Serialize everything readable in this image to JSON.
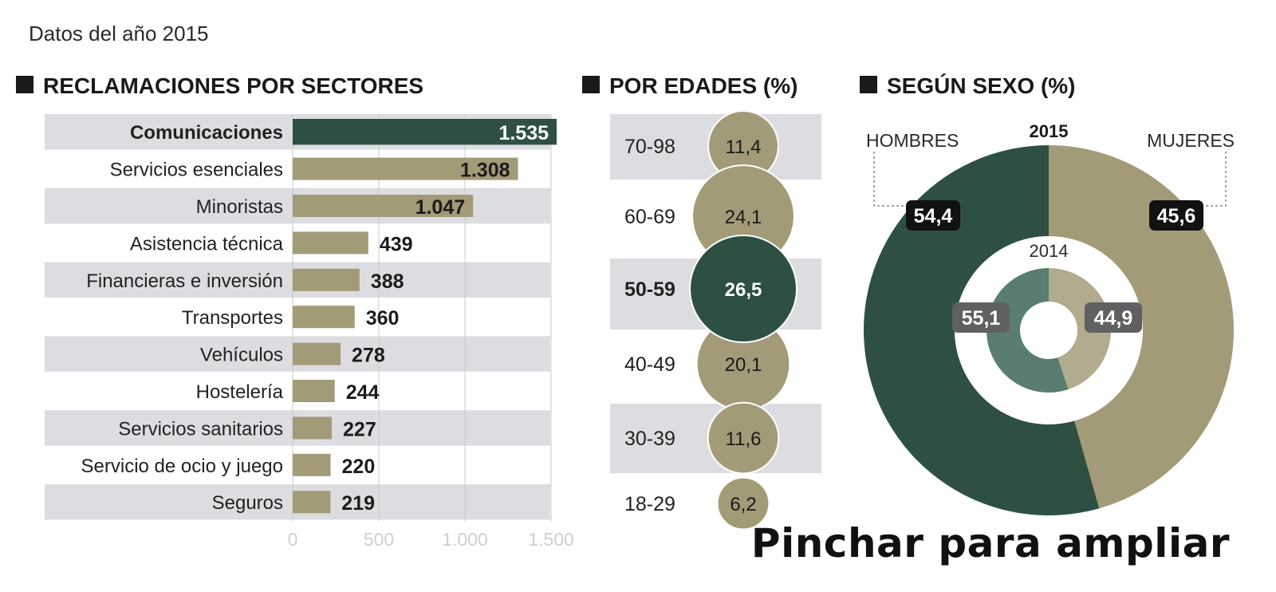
{
  "header": {
    "subtitle": "Datos del año 2015",
    "cta_label": "Pinchar para ampliar"
  },
  "colors": {
    "dark_green": "#2e5043",
    "khaki": "#a39a78",
    "mid_green": "#597e70",
    "band": "#dcdde0",
    "label_box": "#111111",
    "label_box_gray": "#5f6061"
  },
  "chart_data": [
    {
      "type": "bar",
      "orientation": "horizontal",
      "title": "RECLAMACIONES POR SECTORES",
      "categories": [
        "Comunicaciones",
        "Servicios esenciales",
        "Minoristas",
        "Asistencia técnica",
        "Financieras e inversión",
        "Transportes",
        "Vehículos",
        "Hostelería",
        "Servicios sanitarios",
        "Servicio de ocio y juego",
        "Seguros"
      ],
      "values": [
        1535,
        1308,
        1047,
        439,
        388,
        360,
        278,
        244,
        227,
        220,
        219
      ],
      "value_labels": [
        "1.535",
        "1.308",
        "1.047",
        "439",
        "388",
        "360",
        "278",
        "244",
        "227",
        "220",
        "219"
      ],
      "highlight_index": 0,
      "xlim": [
        0,
        1500
      ],
      "xticks": [
        0,
        500,
        1000,
        1500
      ],
      "xtick_labels": [
        "0",
        "500",
        "1.000",
        "1.500"
      ],
      "grid": true,
      "alternating_bands": true
    },
    {
      "type": "bubble",
      "title": "POR EDADES (%)",
      "categories": [
        "70-98",
        "60-69",
        "50-59",
        "40-49",
        "30-39",
        "18-29"
      ],
      "values": [
        11.4,
        24.1,
        26.5,
        20.1,
        11.6,
        6.2
      ],
      "value_labels": [
        "11,4",
        "24,1",
        "26,5",
        "20,1",
        "11,6",
        "6,2"
      ],
      "highlight_index": 2
    },
    {
      "type": "pie",
      "variant": "double-donut",
      "title": "SEGÚN SEXO (%)",
      "series": [
        {
          "name": "2015",
          "labels": [
            "HOMBRES",
            "MUJERES"
          ],
          "values": [
            54.4,
            45.6
          ],
          "value_labels": [
            "54,4",
            "45,6"
          ]
        },
        {
          "name": "2014",
          "labels": [
            "HOMBRES",
            "MUJERES"
          ],
          "values": [
            55.1,
            44.9
          ],
          "value_labels": [
            "55,1",
            "44,9"
          ]
        }
      ]
    }
  ]
}
